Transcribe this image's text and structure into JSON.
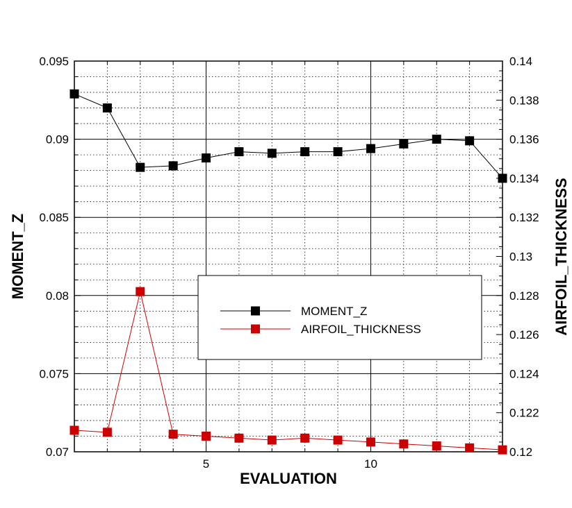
{
  "chart_data": {
    "type": "line",
    "xlabel": "EVALUATION",
    "ylabel_left": "MOMENT_Z",
    "ylabel_right": "AIRFOIL_THICKNESS",
    "xlim": [
      1,
      14
    ],
    "ylim_left": [
      0.07,
      0.095
    ],
    "ylim_right": [
      0.12,
      0.14
    ],
    "x_major_ticks": [
      "5",
      "10"
    ],
    "y_left_ticks": [
      "0.07",
      "0.075",
      "0.08",
      "0.085",
      "0.09",
      "0.095"
    ],
    "y_right_ticks": [
      "0.12",
      "0.122",
      "0.124",
      "0.126",
      "0.128",
      "0.13",
      "0.132",
      "0.134",
      "0.136",
      "0.138",
      "0.14"
    ],
    "grid": true,
    "legend_position": "center-right",
    "x": [
      1,
      2,
      3,
      4,
      5,
      6,
      7,
      8,
      9,
      10,
      11,
      12,
      13,
      14
    ],
    "series": [
      {
        "name": "MOMENT_Z",
        "axis": "left",
        "color": "#000000",
        "values": [
          0.0929,
          0.092,
          0.0882,
          0.0883,
          0.0888,
          0.0892,
          0.0891,
          0.0892,
          0.0892,
          0.0894,
          0.0897,
          0.09,
          0.0899,
          0.0875
        ]
      },
      {
        "name": "AIRFOIL_THICKNESS",
        "axis": "right",
        "color": "#cc0000",
        "values": [
          0.1211,
          0.121,
          0.1282,
          0.1209,
          0.1208,
          0.1207,
          0.1206,
          0.1207,
          0.1206,
          0.1205,
          0.1204,
          0.1203,
          0.1202,
          0.1201
        ]
      }
    ]
  }
}
